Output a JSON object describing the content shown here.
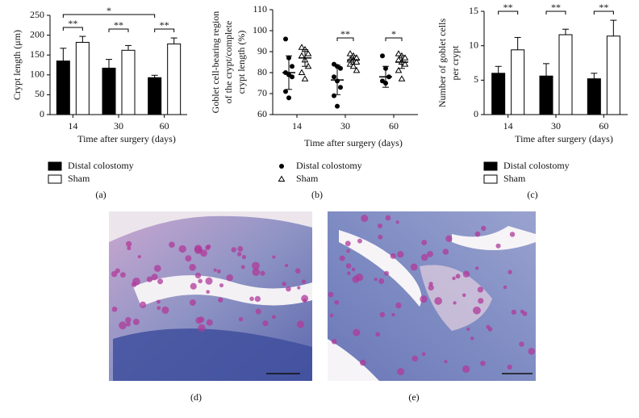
{
  "chart_data": [
    {
      "type": "bar",
      "panel_label": "(a)",
      "ylabel": [
        "Crypt length (μm)"
      ],
      "xlabel": "Time after surgery (days)",
      "categories": [
        "14",
        "30",
        "60"
      ],
      "ylim": [
        0,
        250
      ],
      "yticks": [
        0,
        50,
        100,
        150,
        200,
        250
      ],
      "series": [
        {
          "name": "Distal colostomy",
          "color": "#000000",
          "values": [
            135,
            117,
            93
          ],
          "errors": [
            32,
            22,
            6
          ]
        },
        {
          "name": "Sham",
          "color": "#ffffff",
          "values": [
            182,
            162,
            178
          ],
          "errors": [
            15,
            12,
            15
          ]
        }
      ],
      "annotations": [
        "**",
        "**",
        "**",
        "*"
      ]
    },
    {
      "type": "dot",
      "panel_label": "(b)",
      "ylabel": [
        "Goblet cell-bearing region",
        "of the crypt/complete",
        "crypt length (%)"
      ],
      "xlabel": "Time after surgery (days)",
      "categories": [
        "14",
        "30",
        "60"
      ],
      "ylim": [
        60,
        110
      ],
      "yticks": [
        60,
        70,
        80,
        90,
        100,
        110
      ],
      "series": [
        {
          "name": "Distal colostomy",
          "marker": "circle",
          "color": "#000000",
          "values": [
            [
              96,
              87,
              83,
              80,
              79,
              78,
              71,
              68
            ],
            [
              84,
              83,
              82,
              78,
              76,
              73,
              69,
              64
            ],
            [
              88,
              82,
              78,
              76,
              75
            ]
          ],
          "mean": [
            80,
            76.5,
            78
          ],
          "sd": [
            8,
            7,
            5
          ]
        },
        {
          "name": "Sham",
          "marker": "triangle",
          "color": "#ffffff",
          "values": [
            [
              92,
              91,
              89,
              88,
              86,
              83,
              80,
              77
            ],
            [
              89,
              88,
              87,
              86,
              86,
              85,
              84,
              83,
              81
            ],
            [
              89,
              88,
              87,
              86,
              85,
              84,
              81,
              77
            ]
          ],
          "mean": [
            87,
            86,
            85
          ],
          "sd": [
            4,
            2,
            3
          ]
        }
      ],
      "annotations": [
        "**",
        "*"
      ]
    },
    {
      "type": "bar",
      "panel_label": "(c)",
      "ylabel": [
        "Number of goblet cells",
        "per crypt"
      ],
      "xlabel": "Time after surgery (days)",
      "categories": [
        "14",
        "30",
        "60"
      ],
      "ylim": [
        0,
        15
      ],
      "yticks": [
        0,
        5,
        10,
        15
      ],
      "series": [
        {
          "name": "Distal colostomy",
          "color": "#000000",
          "values": [
            6,
            5.6,
            5.2
          ],
          "errors": [
            1,
            1.8,
            0.8
          ]
        },
        {
          "name": "Sham",
          "color": "#ffffff",
          "values": [
            9.4,
            11.6,
            11.4
          ],
          "errors": [
            1.8,
            0.8,
            2.3
          ]
        }
      ],
      "annotations": [
        "**",
        "**",
        "**"
      ]
    }
  ],
  "images": [
    {
      "label": "(d)"
    },
    {
      "label": "(e)"
    }
  ]
}
